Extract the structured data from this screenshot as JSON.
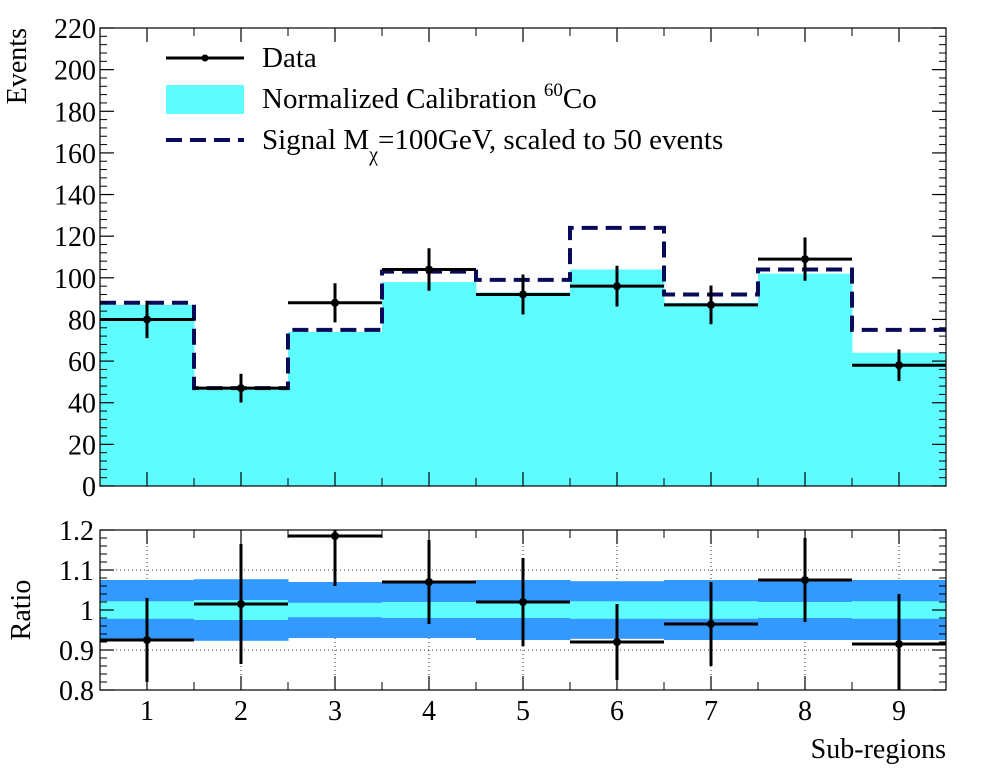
{
  "chart_data": [
    {
      "type": "histogram",
      "panel": "top",
      "xlabel": "Sub-regions",
      "ylabel": "Events",
      "ylim": [
        0,
        220
      ],
      "yticks": [
        0,
        20,
        40,
        60,
        80,
        100,
        120,
        140,
        160,
        180,
        200,
        220
      ],
      "categories": [
        "1",
        "2",
        "3",
        "4",
        "5",
        "6",
        "7",
        "8",
        "9"
      ],
      "legend": {
        "placement": "top-left",
        "entries": [
          {
            "key": "data",
            "label": "Data"
          },
          {
            "key": "calibration",
            "label_main": "Normalized Calibration ",
            "label_sup": "60",
            "label_tail": "Co"
          },
          {
            "key": "signal",
            "label_main": "Signal M",
            "label_sub": "χ",
            "label_tail": "=100GeV, scaled to 50 events"
          }
        ]
      },
      "series": [
        {
          "name": "Normalized Calibration 60Co",
          "style": "filled-histogram",
          "color": "#5ffcff",
          "values": [
            87,
            47,
            74,
            98,
            93,
            104,
            88,
            102,
            64
          ]
        },
        {
          "name": "Signal Mχ=100GeV, scaled to 50 events",
          "style": "dashed-histogram",
          "color": "#0a0a5a",
          "values": [
            88,
            47,
            75,
            103,
            99,
            124,
            92,
            104,
            75
          ]
        },
        {
          "name": "Data",
          "style": "points-with-errors",
          "color": "#000000",
          "values": [
            80,
            47,
            88,
            104,
            92,
            96,
            87,
            109,
            58
          ],
          "errors": [
            9,
            6.9,
            9.4,
            10.2,
            9.6,
            9.8,
            9.3,
            10.4,
            7.6
          ]
        }
      ]
    },
    {
      "type": "ratio",
      "panel": "bottom",
      "xlabel": "Sub-regions",
      "ylabel": "Ratio",
      "ylim": [
        0.8,
        1.2
      ],
      "yticks": [
        "0.8",
        "0.9",
        "1",
        "1.1",
        "1.2"
      ],
      "xticks": [
        "1",
        "2",
        "3",
        "4",
        "5",
        "6",
        "7",
        "8",
        "9"
      ],
      "grid": true,
      "bands": {
        "outer": {
          "color": "#3399ff",
          "halfwidth": [
            0.075,
            0.077,
            0.07,
            0.07,
            0.075,
            0.072,
            0.075,
            0.075,
            0.075
          ]
        },
        "inner": {
          "color": "#5ffcff",
          "halfwidth": [
            0.022,
            0.025,
            0.018,
            0.02,
            0.02,
            0.022,
            0.022,
            0.02,
            0.022
          ]
        }
      },
      "series": [
        {
          "name": "Data / Calibration",
          "style": "points-with-errors",
          "color": "#000000",
          "values": [
            0.925,
            1.015,
            1.185,
            1.07,
            1.02,
            0.92,
            0.965,
            1.075,
            0.915
          ],
          "errors": [
            0.105,
            0.15,
            0.125,
            0.105,
            0.11,
            0.095,
            0.105,
            0.105,
            0.125
          ]
        }
      ]
    }
  ]
}
